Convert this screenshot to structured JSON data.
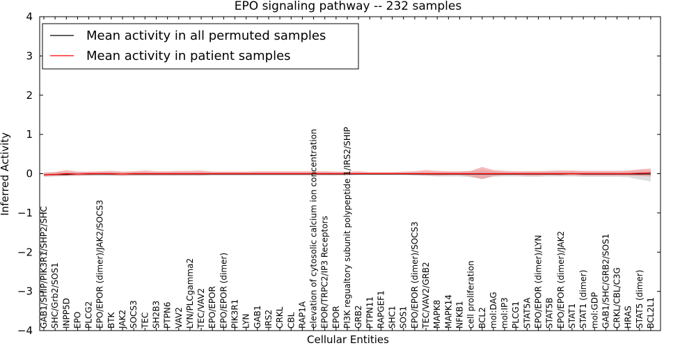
{
  "chart_data": {
    "type": "line",
    "title": "EPO signaling pathway -- 232 samples",
    "xlabel": "Cellular Entities",
    "ylabel": "Inferred Activity",
    "ylim": [
      -4,
      4
    ],
    "yticks": [
      -4,
      -3,
      -2,
      -1,
      0,
      1,
      2,
      3,
      4
    ],
    "ytick_labels": [
      "−4",
      "−3",
      "−2",
      "−1",
      "0",
      "1",
      "2",
      "3",
      "4"
    ],
    "grid": false,
    "legend_position": "top-left",
    "categories": [
      "GAB1/SHIP/PIK3R1/SHP2/SHC",
      "SHC/Grb2/SOS1",
      "INPP5D",
      "EPO",
      "PLCG2",
      "EPO/EPOR (dimer)/JAK2/SOCS3",
      "BTK",
      "JAK2",
      "SOCS3",
      "TEC",
      "SH2B3",
      "PTPN6",
      "VAV2",
      "LYN/PLCgamma2",
      "TEC/VAV2",
      "EPO/EPOR",
      "EPO/EPOR (dimer)",
      "PIK3R1",
      "LYN",
      "GAB1",
      "IRS2",
      "CRKL",
      "CBL",
      "RAP1A",
      "elevation of cytosolic calcium ion concentration",
      "EPOR/TRPC2/IP3 Receptors",
      "EPOR",
      "PI3K regualtory subunit polypeptide 1/IRS2/SHIP",
      "GRB2",
      "PTPN11",
      "RAPGEF1",
      "SHC1",
      "SOS1",
      "EPO/EPOR (dimer)/SOCS3",
      "TEC/VAV2/GRB2",
      "MAPK8",
      "MAPK14",
      "NFKB1",
      "cell proliferation",
      "BCL2",
      "mol:DAG",
      "mol:IP3",
      "PLCG1",
      "STAT5A",
      "EPO/EPOR (dimer)/LYN",
      "STAT5B",
      "EPO/EPOR (dimer)/JAK2",
      "STAT1",
      "STAT1 (dimer)",
      "mol:GDP",
      "GAB1/SHC/GRB2/SOS1",
      "CRKL/CBL/C3G",
      "HRAS",
      "STAT5 (dimer)",
      "BCL2L1"
    ],
    "series": [
      {
        "name": "Mean activity in all permuted samples",
        "color": "#000000",
        "band_color": "#c8c8c8",
        "values": [
          -0.03,
          -0.02,
          -0.02,
          -0.01,
          -0.01,
          -0.01,
          -0.01,
          -0.01,
          -0.01,
          -0.01,
          -0.01,
          -0.01,
          -0.01,
          -0.01,
          -0.01,
          -0.01,
          -0.01,
          -0.01,
          -0.01,
          -0.01,
          -0.01,
          -0.01,
          -0.01,
          -0.01,
          -0.01,
          -0.01,
          -0.01,
          -0.01,
          -0.01,
          -0.01,
          -0.01,
          -0.01,
          -0.01,
          -0.01,
          -0.01,
          -0.01,
          -0.01,
          -0.01,
          -0.01,
          -0.01,
          -0.01,
          -0.01,
          -0.01,
          -0.01,
          -0.01,
          -0.01,
          -0.01,
          0.0,
          -0.01,
          -0.01,
          -0.01,
          -0.01,
          -0.01,
          -0.01,
          -0.01
        ],
        "band_lower": [
          -0.08,
          -0.07,
          -0.06,
          -0.06,
          -0.06,
          -0.06,
          -0.06,
          -0.06,
          -0.06,
          -0.06,
          -0.06,
          -0.06,
          -0.06,
          -0.06,
          -0.06,
          -0.05,
          -0.05,
          -0.05,
          -0.05,
          -0.05,
          -0.05,
          -0.05,
          -0.05,
          -0.05,
          -0.05,
          -0.05,
          -0.05,
          -0.05,
          -0.04,
          -0.04,
          -0.04,
          -0.04,
          -0.04,
          -0.05,
          -0.06,
          -0.07,
          -0.07,
          -0.07,
          -0.09,
          -0.13,
          -0.08,
          -0.07,
          -0.07,
          -0.08,
          -0.08,
          -0.07,
          -0.07,
          -0.07,
          -0.08,
          -0.08,
          -0.08,
          -0.08,
          -0.09,
          -0.15,
          -0.2
        ],
        "band_upper": [
          0.03,
          0.04,
          0.04,
          0.04,
          0.04,
          0.04,
          0.04,
          0.04,
          0.04,
          0.04,
          0.04,
          0.04,
          0.04,
          0.04,
          0.04,
          0.04,
          0.04,
          0.04,
          0.04,
          0.04,
          0.04,
          0.04,
          0.04,
          0.04,
          0.04,
          0.04,
          0.04,
          0.04,
          0.03,
          0.03,
          0.03,
          0.03,
          0.03,
          0.04,
          0.04,
          0.04,
          0.04,
          0.04,
          0.06,
          0.09,
          0.06,
          0.04,
          0.04,
          0.05,
          0.05,
          0.05,
          0.05,
          0.06,
          0.05,
          0.05,
          0.05,
          0.05,
          0.05,
          0.07,
          0.08
        ]
      },
      {
        "name": "Mean activity in patient samples",
        "color": "#ff0000",
        "band_color": "#f08080",
        "values": [
          -0.03,
          -0.02,
          0.0,
          -0.01,
          0.0,
          0.0,
          0.0,
          -0.01,
          0.0,
          0.0,
          0.0,
          0.0,
          0.0,
          0.0,
          0.0,
          0.0,
          0.0,
          0.0,
          0.0,
          0.0,
          0.0,
          0.0,
          0.0,
          0.0,
          0.0,
          0.0,
          0.0,
          0.0,
          0.0,
          0.0,
          0.0,
          0.0,
          0.0,
          0.0,
          0.0,
          0.0,
          0.0,
          0.0,
          0.0,
          0.0,
          0.0,
          0.0,
          0.0,
          0.0,
          0.0,
          0.0,
          0.0,
          0.0,
          0.0,
          0.0,
          0.0,
          0.0,
          0.0,
          0.01,
          0.02
        ],
        "band_lower": [
          -0.07,
          -0.06,
          -0.06,
          -0.05,
          -0.04,
          -0.03,
          -0.04,
          -0.05,
          -0.04,
          -0.04,
          -0.04,
          -0.04,
          -0.04,
          -0.04,
          -0.04,
          -0.03,
          -0.03,
          -0.03,
          -0.03,
          -0.03,
          -0.03,
          -0.03,
          -0.03,
          -0.03,
          -0.03,
          -0.03,
          -0.03,
          -0.03,
          -0.02,
          -0.02,
          -0.02,
          -0.02,
          -0.02,
          -0.03,
          -0.04,
          -0.05,
          -0.04,
          -0.04,
          -0.07,
          -0.14,
          -0.06,
          -0.04,
          -0.04,
          -0.05,
          -0.05,
          -0.04,
          -0.05,
          -0.04,
          -0.05,
          -0.05,
          -0.05,
          -0.05,
          -0.05,
          -0.06,
          -0.07
        ],
        "band_upper": [
          0.02,
          0.04,
          0.09,
          0.05,
          0.05,
          0.06,
          0.07,
          0.05,
          0.06,
          0.08,
          0.06,
          0.06,
          0.07,
          0.07,
          0.08,
          0.05,
          0.05,
          0.05,
          0.05,
          0.06,
          0.06,
          0.06,
          0.06,
          0.06,
          0.06,
          0.06,
          0.05,
          0.05,
          0.06,
          0.04,
          0.04,
          0.04,
          0.05,
          0.06,
          0.09,
          0.07,
          0.06,
          0.06,
          0.07,
          0.17,
          0.09,
          0.07,
          0.06,
          0.06,
          0.06,
          0.07,
          0.08,
          0.08,
          0.07,
          0.07,
          0.07,
          0.07,
          0.08,
          0.11,
          0.13
        ]
      }
    ]
  }
}
